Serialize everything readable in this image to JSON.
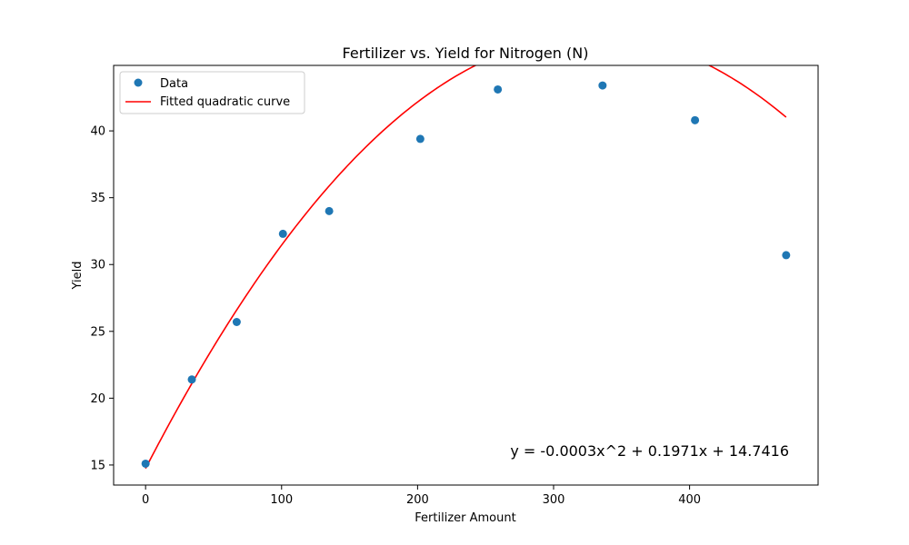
{
  "chart_data": {
    "type": "scatter",
    "title": "Fertilizer vs. Yield for Nitrogen (N)",
    "xlabel": "Fertilizer Amount",
    "ylabel": "Yield",
    "xlim": [
      -23.5,
      494.5
    ],
    "ylim": [
      13.5,
      44.9
    ],
    "x_ticks": [
      0,
      100,
      200,
      300,
      400
    ],
    "y_ticks": [
      15,
      20,
      25,
      30,
      35,
      40
    ],
    "grid": false,
    "legend_position": "top-left",
    "series": [
      {
        "name": "Data",
        "kind": "scatter",
        "color": "#1f77b4",
        "x": [
          0,
          34,
          67,
          101,
          135,
          202,
          259,
          336,
          404,
          471
        ],
        "y": [
          15.1,
          21.4,
          25.7,
          32.3,
          34.0,
          39.4,
          43.1,
          43.4,
          40.8,
          30.7
        ]
      },
      {
        "name": "Fitted quadratic curve",
        "kind": "line",
        "color": "#ff0000",
        "coefficients": {
          "a": -0.0003,
          "b": 0.1971,
          "c": 14.7416
        },
        "x_range": [
          0,
          471
        ]
      }
    ],
    "annotation": "y = -0.0003x^2 + 0.1971x + 14.7416"
  }
}
